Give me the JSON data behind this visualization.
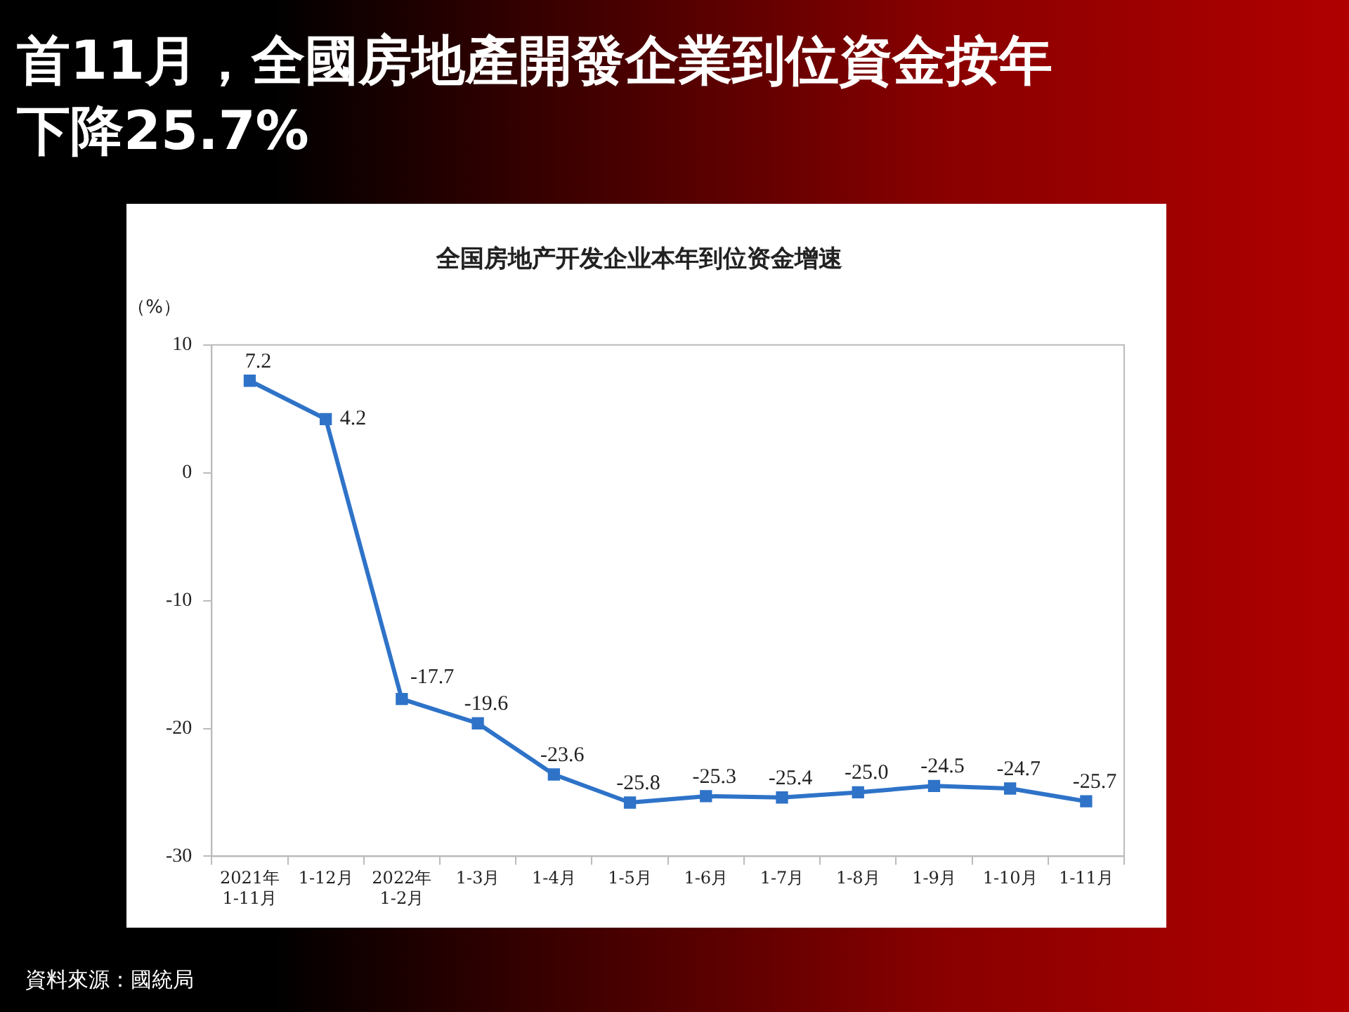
{
  "chart_data": {
    "type": "line",
    "title": "首11月，全國房地產開發企業到位資金按年下降25.7%",
    "subtitle": "全国房地产开发企业本年到位资金增速",
    "ylabel": "（%）",
    "categories": [
      "2021年\n1-11月",
      "1-12月",
      "2022年\n1-2月",
      "1-3月",
      "1-4月",
      "1-5月",
      "1-6月",
      "1-7月",
      "1-8月",
      "1-9月",
      "1-10月",
      "1-11月"
    ],
    "series": [
      {
        "color": "#2e73c8",
        "values": [
          7.2,
          4.2,
          -17.7,
          -19.6,
          -23.6,
          -25.8,
          -25.3,
          -25.4,
          -25.0,
          -24.5,
          -24.7,
          -25.7
        ],
        "value_labels": [
          "7.2",
          "4.2",
          "-17.7",
          "-19.6",
          "-23.6",
          "-25.8",
          "-25.3",
          "-25.4",
          "-25.0",
          "-24.5",
          "-24.7",
          "-25.7"
        ]
      }
    ],
    "ylim": [
      -30,
      10
    ],
    "yticks": [
      -30,
      -20,
      -10,
      0,
      10
    ],
    "grid": false,
    "legend": false,
    "marker": "square",
    "line_style": "solid",
    "annotations": [
      "資料來源：國統局"
    ]
  }
}
